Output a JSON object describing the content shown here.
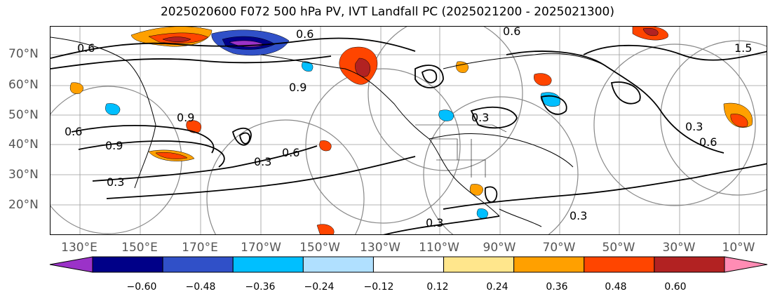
{
  "title": "2025020600 F072 500 hPa PV, IVT Landfall PC (2025021200 - 2025021300)",
  "lat_labels": [
    "70°N",
    "60°N",
    "50°N",
    "40°N",
    "30°N",
    "20°N"
  ],
  "lon_labels": [
    "130°E",
    "150°E",
    "170°E",
    "170°W",
    "150°W",
    "130°W",
    "110°W",
    "90°W",
    "70°W",
    "50°W",
    "30°W",
    "10°W"
  ],
  "contour_labels": [
    "0.6",
    "0.6",
    "0.9",
    "0.9",
    "0.6",
    "0.3",
    "0.9",
    "0.3",
    "0.6",
    "0.3",
    "0.6",
    "0.3",
    "0.6",
    "0.3",
    "1.5",
    "0.3"
  ],
  "colorbar": {
    "ticks": [
      "−0.60",
      "−0.48",
      "−0.36",
      "−0.24",
      "−0.12",
      "0.12",
      "0.24",
      "0.36",
      "0.48",
      "0.60"
    ],
    "colors": [
      "#9b32c8",
      "#000088",
      "#3050c8",
      "#00bfff",
      "#b0e0ff",
      "#ffffff",
      "#ffe68c",
      "#ffa000",
      "#ff4500",
      "#b22222",
      "#ff8cb4"
    ]
  }
}
